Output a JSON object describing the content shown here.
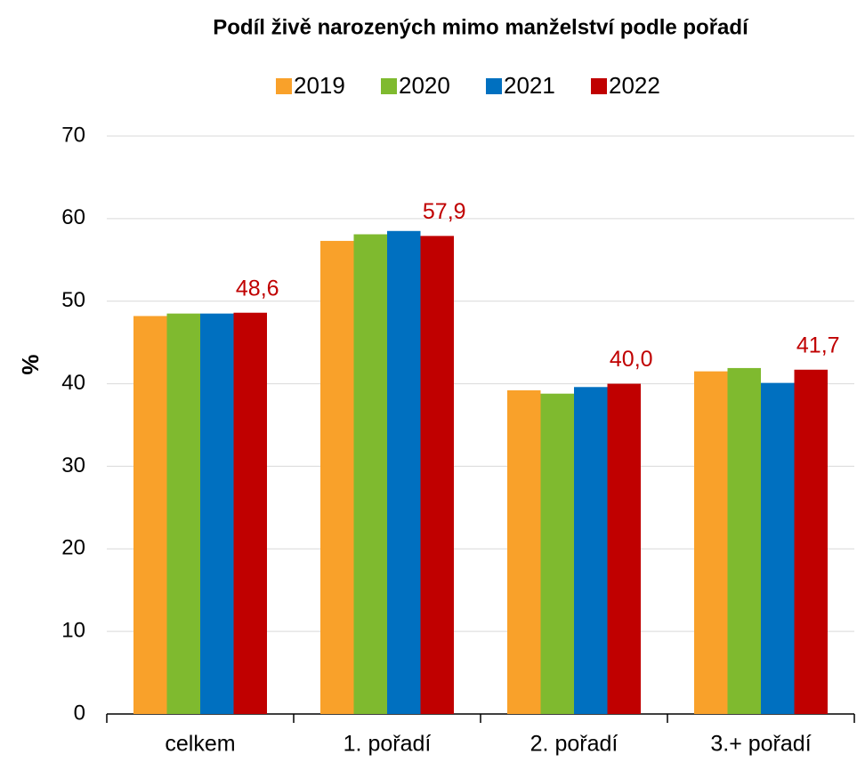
{
  "chart_data": {
    "type": "bar",
    "title": "Podíl živě narozených mimo manželství podle pořadí",
    "y_label": "%",
    "categories": [
      "celkem",
      "1. pořadí",
      "2. pořadí",
      "3.+ pořadí"
    ],
    "series": [
      {
        "name": "2019",
        "color": "#f9a12a",
        "values": [
          48.2,
          57.3,
          39.2,
          41.5
        ]
      },
      {
        "name": "2020",
        "color": "#7fba2f",
        "values": [
          48.5,
          58.1,
          38.8,
          41.9
        ]
      },
      {
        "name": "2021",
        "color": "#0070c0",
        "values": [
          48.5,
          58.5,
          39.6,
          40.1
        ]
      },
      {
        "name": "2022",
        "color": "#c00000",
        "values": [
          48.6,
          57.9,
          40.0,
          41.7
        ],
        "value_labels": [
          "48,6",
          "57,9",
          "40,0",
          "41,7"
        ]
      }
    ],
    "ylim": [
      0,
      70
    ],
    "yticks": [
      0,
      10,
      20,
      30,
      40,
      50,
      60,
      70
    ],
    "grid": true,
    "legend": "top"
  }
}
